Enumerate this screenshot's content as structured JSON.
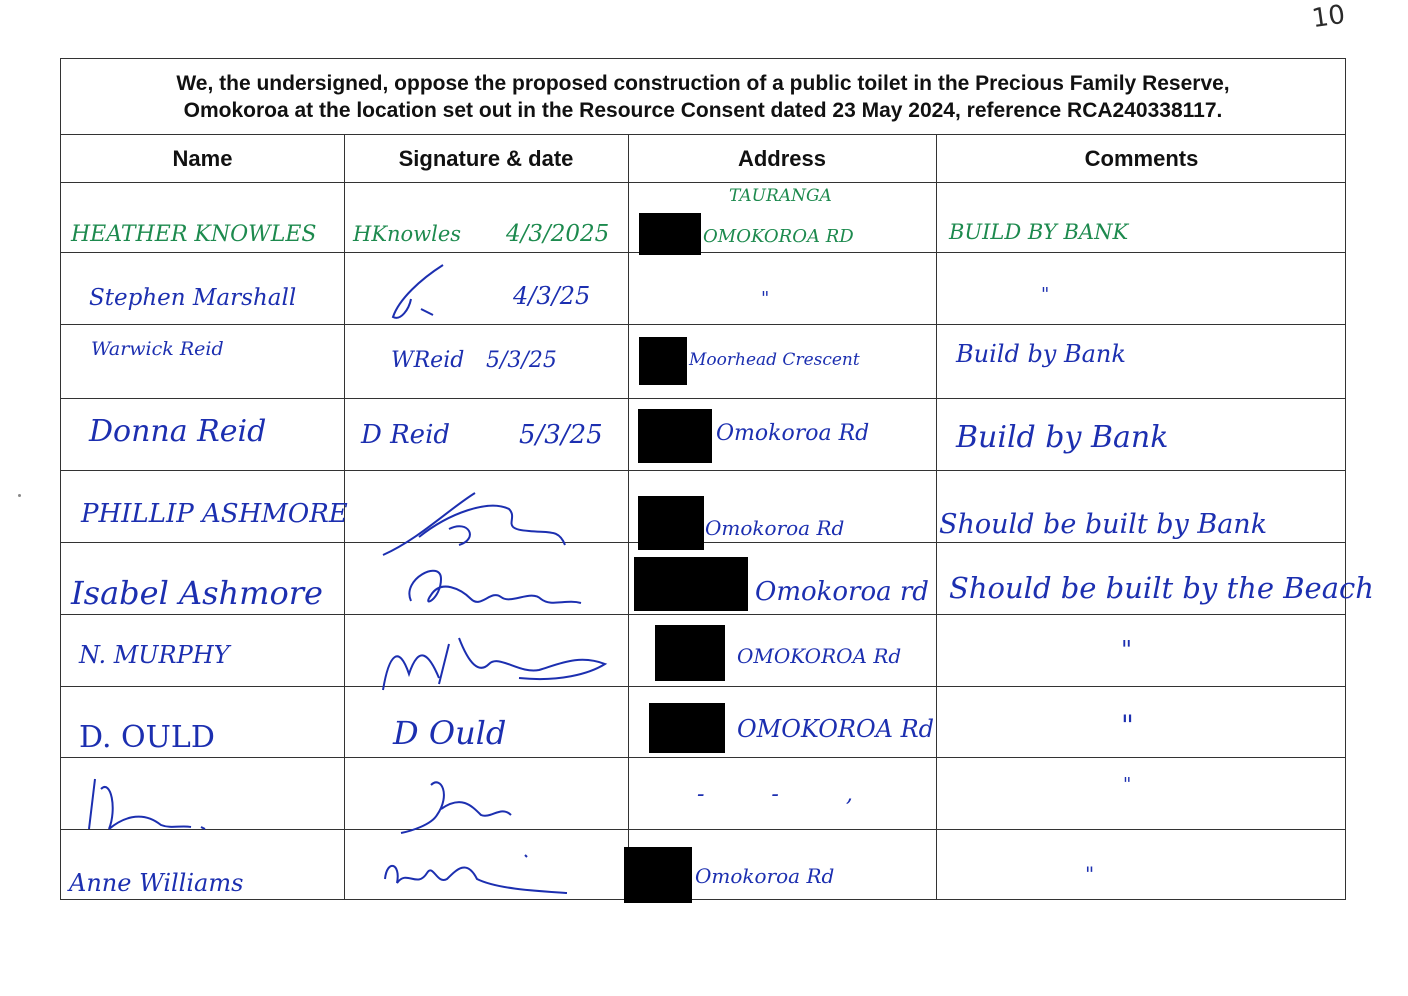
{
  "page_number": "10",
  "heading": {
    "line1": "We, the undersigned, oppose the proposed construction of a public toilet in the Precious Family Reserve,",
    "line2": "Omokoroa at the location set out in the Resource Consent dated 23 May 2024, reference RCA240338117."
  },
  "columns": {
    "name": "Name",
    "signature": "Signature & date",
    "address": "Address",
    "comments": "Comments"
  },
  "rows": [
    {
      "name": "HEATHER KNOWLES",
      "signature": "HKnowles",
      "date": "4/3/2025",
      "address_above": "TAURANGA",
      "address": "OMOKOROA RD",
      "comment": "BUILD BY BANK",
      "ink": "#1d8a4e"
    },
    {
      "name": "Stephen Marshall",
      "signature": "",
      "date": "4/3/25",
      "address_above": "",
      "address": "\"",
      "comment": "\"",
      "ink": "#1c2fb0"
    },
    {
      "name": "Warwick Reid",
      "signature": "WReid",
      "date": "5/3/25",
      "address_above": "",
      "address": "Moorhead Crescent",
      "comment": "Build by Bank",
      "ink": "#1c2fb0"
    },
    {
      "name": "Donna Reid",
      "signature": "D Reid",
      "date": "5/3/25",
      "address_above": "",
      "address": "Omokoroa Rd",
      "comment": "Build by Bank",
      "ink": "#1c2fb0"
    },
    {
      "name": "PHILLIP ASHMORE",
      "signature": "",
      "date": "",
      "address_above": "",
      "address": "Omokoroa Rd",
      "comment": "Should be built by Bank",
      "ink": "#1c2fb0"
    },
    {
      "name": "Isabel Ashmore",
      "signature": "",
      "date": "",
      "address_above": "",
      "address": "Omokoroa rd",
      "comment": "Should be built by the Beach",
      "ink": "#1c2fb0"
    },
    {
      "name": "N. MURPHY",
      "signature": "",
      "date": "",
      "address_above": "",
      "address": "OMOKOROA Rd",
      "comment": "\"",
      "ink": "#1c2fb0"
    },
    {
      "name": "D. OULD",
      "signature": "D Ould",
      "date": "",
      "address_above": "",
      "address": "OMOKOROA Rd",
      "comment": "\"",
      "ink": "#1c2fb0"
    },
    {
      "name": "",
      "signature": "",
      "date": "",
      "address_above": "",
      "address": "- - ,",
      "comment": "\"",
      "ink": "#1c2fb0"
    },
    {
      "name": "Anne Williams",
      "signature": "",
      "date": "",
      "address_above": "",
      "address": "Omokoroa Rd",
      "comment": "\"",
      "ink": "#1c2fb0"
    }
  ]
}
